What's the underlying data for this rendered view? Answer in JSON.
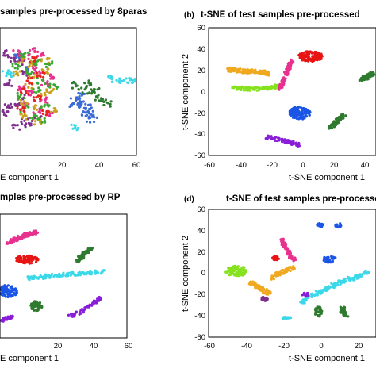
{
  "chart_data": [
    {
      "type": "scatter",
      "panel_label": "",
      "title": "samples pre-processed by 8paras",
      "xlabel": "E component 1",
      "ylabel": "",
      "xticks": [
        "20",
        "40",
        "60"
      ],
      "yticks": [],
      "xlim": [
        -6,
        60
      ],
      "ylim": [
        -60,
        60
      ],
      "clusters": [
        {
          "color": "#7e2f8e",
          "points": [
            [
              0,
              30
            ],
            [
              4,
              28
            ],
            [
              2,
              33
            ],
            [
              -2,
              8
            ],
            [
              2,
              -12
            ],
            [
              -2,
              -14
            ],
            [
              6,
              -28
            ],
            [
              8,
              -30
            ],
            [
              2,
              -34
            ],
            [
              -3,
              -20
            ],
            [
              12,
              -26
            ],
            [
              4,
              -6
            ],
            [
              -4,
              36
            ],
            [
              6,
              18
            ]
          ]
        },
        {
          "color": "#3b6bd6",
          "points": [
            [
              30,
              -8
            ],
            [
              34,
              -12
            ],
            [
              37,
              -18
            ],
            [
              39,
              -22
            ],
            [
              33,
              -4
            ],
            [
              28,
              -14
            ],
            [
              36,
              -14
            ],
            [
              32,
              -10
            ],
            [
              38,
              -26
            ],
            [
              35,
              -20
            ],
            [
              3,
              34
            ],
            [
              6,
              22
            ]
          ]
        },
        {
          "color": "#e8318e",
          "points": [
            [
              2,
              36
            ],
            [
              6,
              32
            ],
            [
              10,
              38
            ],
            [
              14,
              36
            ],
            [
              12,
              20
            ],
            [
              16,
              8
            ],
            [
              8,
              -2
            ],
            [
              12,
              -18
            ],
            [
              18,
              -22
            ],
            [
              6,
              -12
            ],
            [
              4,
              4
            ],
            [
              20,
              14
            ],
            [
              9,
              26
            ],
            [
              15,
              -8
            ]
          ]
        },
        {
          "color": "#c8a21f",
          "points": [
            [
              4,
              30
            ],
            [
              8,
              26
            ],
            [
              10,
              14
            ],
            [
              14,
              -4
            ],
            [
              6,
              -10
            ],
            [
              12,
              -28
            ],
            [
              16,
              20
            ],
            [
              2,
              16
            ],
            [
              18,
              2
            ],
            [
              8,
              6
            ],
            [
              12,
              -14
            ],
            [
              20,
              -18
            ],
            [
              5,
              -24
            ],
            [
              16,
              30
            ]
          ]
        },
        {
          "color": "#3aa832",
          "points": [
            [
              6,
              34
            ],
            [
              12,
              28
            ],
            [
              8,
              18
            ],
            [
              14,
              10
            ],
            [
              4,
              -4
            ],
            [
              10,
              -24
            ],
            [
              16,
              -14
            ],
            [
              18,
              26
            ],
            [
              12,
              2
            ],
            [
              6,
              -16
            ],
            [
              20,
              6
            ],
            [
              2,
              24
            ],
            [
              14,
              -26
            ]
          ]
        },
        {
          "color": "#e82020",
          "points": [
            [
              8,
              10
            ],
            [
              12,
              -6
            ],
            [
              4,
              -16
            ],
            [
              10,
              30
            ],
            [
              16,
              -20
            ],
            [
              14,
              16
            ],
            [
              6,
              0
            ]
          ]
        },
        {
          "color": "#2e7a2e",
          "points": [
            [
              30,
              6
            ],
            [
              34,
              2
            ],
            [
              38,
              -2
            ],
            [
              42,
              -6
            ],
            [
              46,
              -12
            ],
            [
              36,
              8
            ],
            [
              40,
              2
            ],
            [
              44,
              -8
            ]
          ]
        },
        {
          "color": "#3ad8e8",
          "points": [
            [
              48,
              12
            ],
            [
              52,
              11
            ],
            [
              56,
              10
            ],
            [
              59,
              9
            ],
            [
              -3,
              18
            ],
            [
              -1,
              17
            ],
            [
              30,
              -34
            ]
          ]
        }
      ]
    },
    {
      "type": "scatter",
      "panel_label": "(b)",
      "title": "t-SNE of test samples pre-processed",
      "xlabel": "t-SNE component 1",
      "ylabel": "t-SNE component 2",
      "xticks": [
        "-60",
        "-40",
        "-20",
        "0",
        "20",
        "40"
      ],
      "yticks": [
        "-60",
        "-40",
        "-20",
        "0",
        "20",
        "40",
        "60"
      ],
      "xlim": [
        -60,
        50
      ],
      "ylim": [
        -60,
        60
      ],
      "clusters": [
        {
          "color": "#f0a81e",
          "shape": "band",
          "points": [
            [
              -48,
              21
            ],
            [
              -42,
              20
            ],
            [
              -36,
              19
            ],
            [
              -30,
              19
            ],
            [
              -24,
              18
            ],
            [
              -20,
              17
            ]
          ]
        },
        {
          "color": "#86e21e",
          "shape": "band",
          "points": [
            [
              -45,
              3
            ],
            [
              -38,
              3
            ],
            [
              -31,
              2
            ],
            [
              -24,
              3
            ],
            [
              -18,
              4
            ],
            [
              -14,
              5
            ]
          ]
        },
        {
          "color": "#e8318e",
          "shape": "band",
          "points": [
            [
              -13,
              2
            ],
            [
              -11,
              10
            ],
            [
              -9,
              17
            ],
            [
              -7,
              24
            ],
            [
              -5,
              30
            ]
          ]
        },
        {
          "color": "#e81414",
          "shape": "blob",
          "center": [
            7,
            33
          ],
          "r": [
            8,
            5
          ]
        },
        {
          "color": "#1a55e6",
          "shape": "blob",
          "center": [
            0,
            -20
          ],
          "r": [
            7,
            6
          ]
        },
        {
          "color": "#2e7a2e",
          "shape": "band",
          "points": [
            [
              20,
              -34
            ],
            [
              23,
              -30
            ],
            [
              26,
              -26
            ],
            [
              29,
              -22
            ]
          ]
        },
        {
          "color": "#8a1ed8",
          "shape": "band",
          "points": [
            [
              -22,
              -43
            ],
            [
              -14,
              -45
            ],
            [
              -6,
              -48
            ],
            [
              0,
              -50
            ]
          ]
        },
        {
          "color": "#2e7a2e",
          "shape": "band",
          "points": [
            [
              40,
              11
            ],
            [
              43,
              13
            ],
            [
              46,
              15
            ],
            [
              48,
              17
            ]
          ]
        }
      ]
    },
    {
      "type": "scatter",
      "panel_label": "",
      "title": "mples pre-processed by RP",
      "xlabel": "E component 1",
      "ylabel": "",
      "xticks": [
        "20",
        "40",
        "60"
      ],
      "yticks": [],
      "xlim": [
        -6,
        60
      ],
      "ylim": [
        -60,
        60
      ],
      "clusters": [
        {
          "color": "#e8318e",
          "shape": "band",
          "points": [
            [
              -2,
              32
            ],
            [
              1,
              35
            ],
            [
              4,
              37
            ],
            [
              7,
              39
            ],
            [
              10,
              41
            ],
            [
              13,
              43
            ]
          ]
        },
        {
          "color": "#e81414",
          "shape": "blob",
          "center": [
            8,
            16
          ],
          "r": [
            6,
            4
          ]
        },
        {
          "color": "#2e7a2e",
          "shape": "band",
          "points": [
            [
              34,
              14
            ],
            [
              36,
              18
            ],
            [
              38,
              22
            ],
            [
              41,
              26
            ]
          ]
        },
        {
          "color": "#3ad8e8",
          "shape": "band",
          "points": [
            [
              8,
              -2
            ],
            [
              16,
              -1
            ],
            [
              24,
              1
            ],
            [
              32,
              2
            ],
            [
              40,
              3
            ],
            [
              48,
              4
            ]
          ]
        },
        {
          "color": "#1a55e6",
          "shape": "blob",
          "center": [
            -3,
            -15
          ],
          "r": [
            6,
            6
          ]
        },
        {
          "color": "#2e7a2e",
          "shape": "blob",
          "center": [
            13,
            -29
          ],
          "r": [
            3,
            5
          ]
        },
        {
          "color": "#8a1ed8",
          "shape": "band",
          "points": [
            [
              30,
              -40
            ],
            [
              36,
              -34
            ],
            [
              42,
              -27
            ],
            [
              48,
              -20
            ]
          ]
        },
        {
          "color": "#8a1ed8",
          "shape": "band",
          "points": [
            [
              -6,
              -43
            ],
            [
              -3,
              -41
            ],
            [
              0,
              -40
            ]
          ]
        }
      ]
    },
    {
      "type": "scatter",
      "panel_label": "(d)",
      "title": "t-SNE of test samples pre-processe",
      "xlabel": "t-SNE component 1",
      "ylabel": "t-SNE component 2",
      "xticks": [
        "-60",
        "-40",
        "-20",
        "0",
        "20"
      ],
      "yticks": [
        "-60",
        "-40",
        "-20",
        "0",
        "20",
        "40",
        "60"
      ],
      "xlim": [
        -60,
        30
      ],
      "ylim": [
        -60,
        60
      ],
      "clusters": [
        {
          "color": "#86e21e",
          "shape": "blob",
          "center": [
            -45,
            2
          ],
          "r": [
            6,
            5
          ]
        },
        {
          "color": "#e8318e",
          "shape": "band",
          "points": [
            [
              -21,
              31
            ],
            [
              -19,
              25
            ],
            [
              -17,
              18
            ],
            [
              -14,
              12
            ]
          ]
        },
        {
          "color": "#e81414",
          "shape": "blob",
          "center": [
            -24,
            14
          ],
          "r": [
            2,
            2
          ]
        },
        {
          "color": "#f0a81e",
          "shape": "band",
          "points": [
            [
              -38,
              -8
            ],
            [
              -34,
              -12
            ],
            [
              -30,
              -16
            ],
            [
              -27,
              -20
            ]
          ]
        },
        {
          "color": "#f0a81e",
          "shape": "band",
          "points": [
            [
              -26,
              -4
            ],
            [
              -22,
              0
            ],
            [
              -18,
              3
            ],
            [
              -14,
              6
            ]
          ]
        },
        {
          "color": "#7e2f8e",
          "shape": "blob",
          "center": [
            -30,
            -24
          ],
          "r": [
            2,
            2
          ]
        },
        {
          "color": "#3ad8e8",
          "shape": "band",
          "points": [
            [
              -10,
              -28
            ],
            [
              -5,
              -22
            ],
            [
              0,
              -17
            ],
            [
              5,
              -13
            ],
            [
              10,
              -9
            ],
            [
              15,
              -6
            ],
            [
              20,
              -3
            ],
            [
              26,
              1
            ]
          ]
        },
        {
          "color": "#1a55e6",
          "shape": "blob",
          "center": [
            5,
            13
          ],
          "r": [
            4,
            3
          ]
        },
        {
          "color": "#1a55e6",
          "shape": "blob",
          "center": [
            0,
            45
          ],
          "r": [
            2,
            2
          ]
        },
        {
          "color": "#1a55e6",
          "shape": "blob",
          "center": [
            10,
            45
          ],
          "r": [
            2,
            2
          ]
        },
        {
          "color": "#2e7a2e",
          "shape": "blob",
          "center": [
            -1,
            -36
          ],
          "r": [
            2,
            5
          ]
        },
        {
          "color": "#2e7a2e",
          "shape": "band",
          "points": [
            [
              14,
              -40
            ],
            [
              12,
              -36
            ],
            [
              12,
              -32
            ]
          ]
        },
        {
          "color": "#8a1ed8",
          "shape": "blob",
          "center": [
            -8,
            -20
          ],
          "r": [
            2,
            2
          ]
        },
        {
          "color": "#3ad8e8",
          "shape": "blob",
          "center": [
            -18,
            -42
          ],
          "r": [
            3,
            1
          ]
        }
      ]
    }
  ]
}
